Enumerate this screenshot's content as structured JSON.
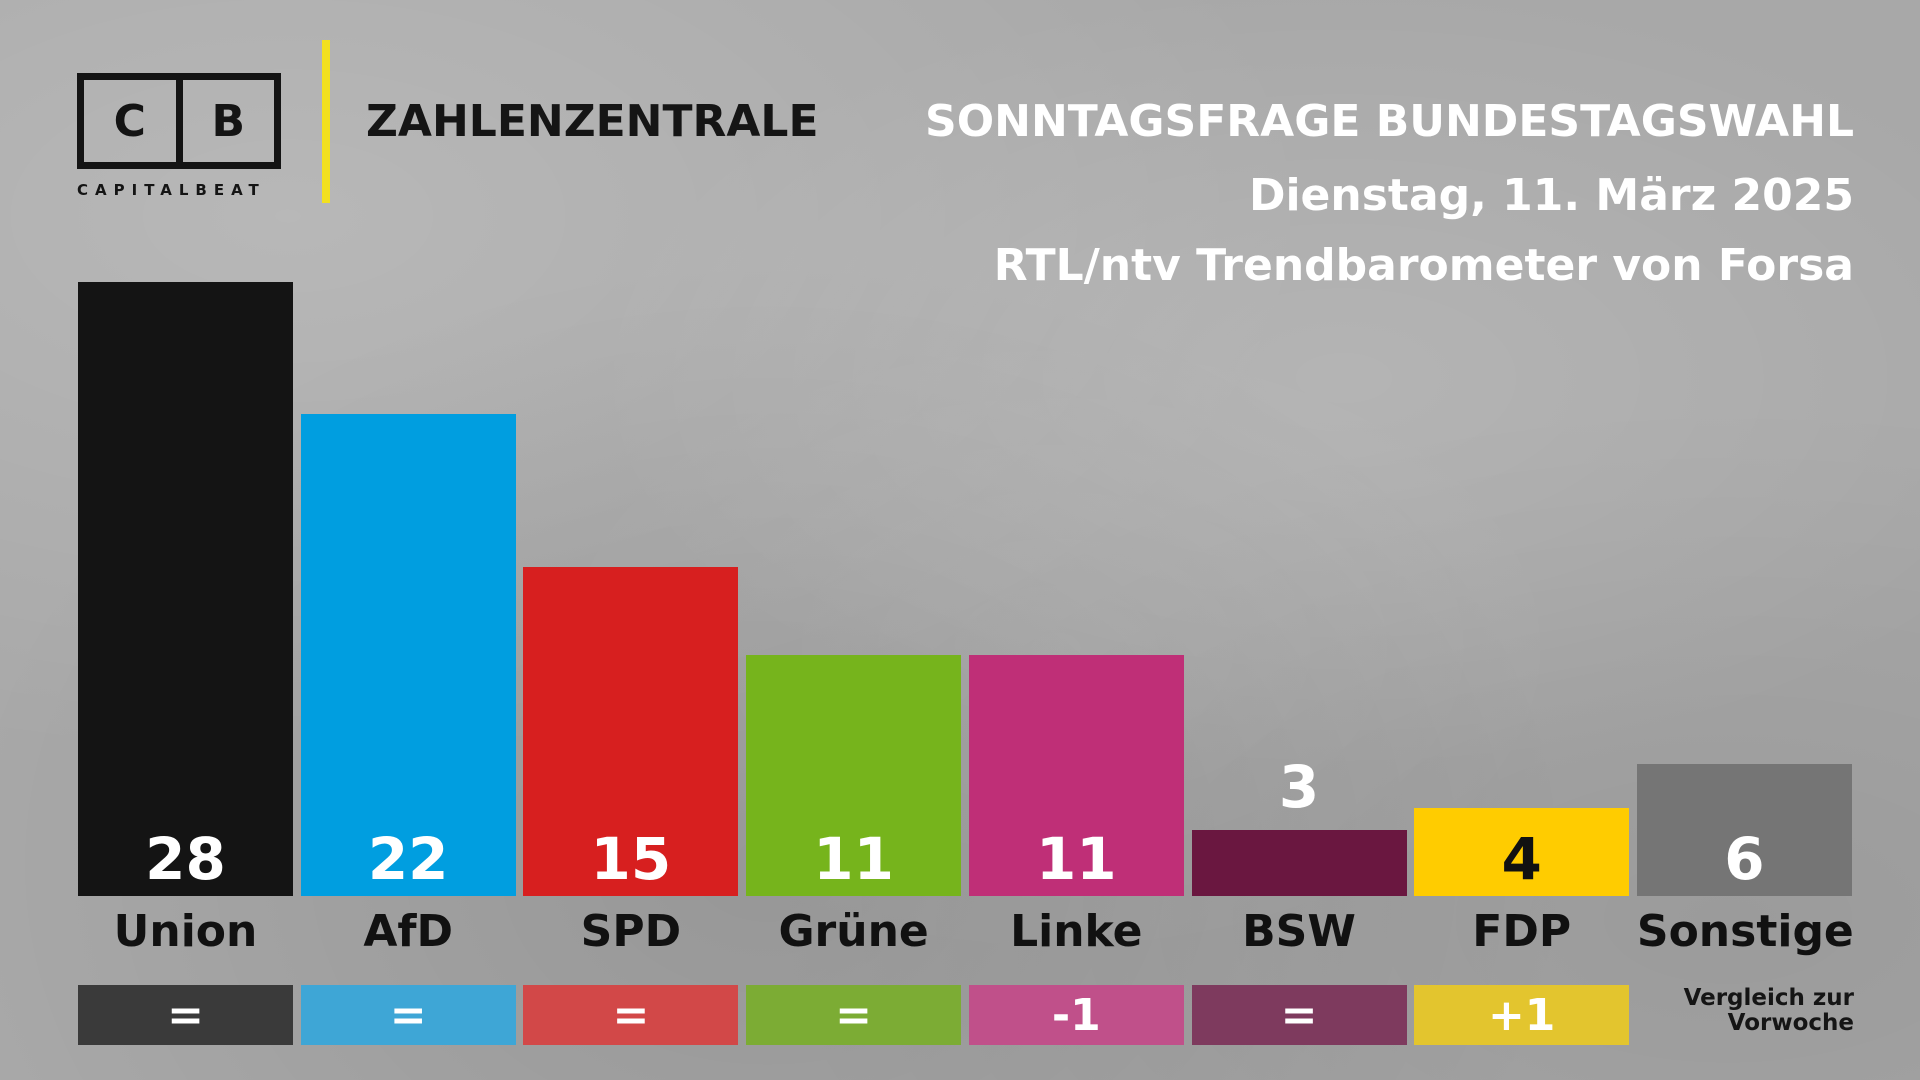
{
  "branding": {
    "logo_left": "C",
    "logo_right": "B",
    "logo_sub": "CAPITALBEAT",
    "title": "ZAHLENZENTRALE"
  },
  "header": {
    "title": "SONNTAGSFRAGE BUNDESTAGSWAHL",
    "date": "Dienstag, 11. März 2025",
    "source": "RTL/ntv Trendbarometer von Forsa"
  },
  "compare_note_line1": "Vergleich zur",
  "compare_note_line2": "Vorwoche",
  "chart_data": {
    "type": "bar",
    "title": "SONNTAGSFRAGE BUNDESTAGSWAHL",
    "categories": [
      "Union",
      "AfD",
      "SPD",
      "Grüne",
      "Linke",
      "BSW",
      "FDP",
      "Sonstige"
    ],
    "values": [
      28,
      22,
      15,
      11,
      11,
      3,
      4,
      6
    ],
    "value_labels": [
      "28",
      "22",
      "15",
      "11",
      "11",
      "3",
      "4",
      "6"
    ],
    "changes": [
      "=",
      "=",
      "=",
      "=",
      "-1",
      "=",
      "+1",
      ""
    ],
    "colors": [
      "#141414",
      "#009ee0",
      "#d71f1f",
      "#76b41c",
      "#bf2f77",
      "#6a1740",
      "#ffcc00",
      "#757575"
    ],
    "change_colors": [
      "#3a3a3a",
      "#3ea6d6",
      "#d24848",
      "#7cac34",
      "#c0508a",
      "#7e3a5e",
      "#e3c52e",
      ""
    ],
    "value_text_colors": [
      "#ffffff",
      "#ffffff",
      "#ffffff",
      "#ffffff",
      "#ffffff",
      "#ffffff",
      "#111111",
      "#ffffff"
    ],
    "ylim": [
      0,
      28
    ],
    "grid": false,
    "legend": "none"
  }
}
